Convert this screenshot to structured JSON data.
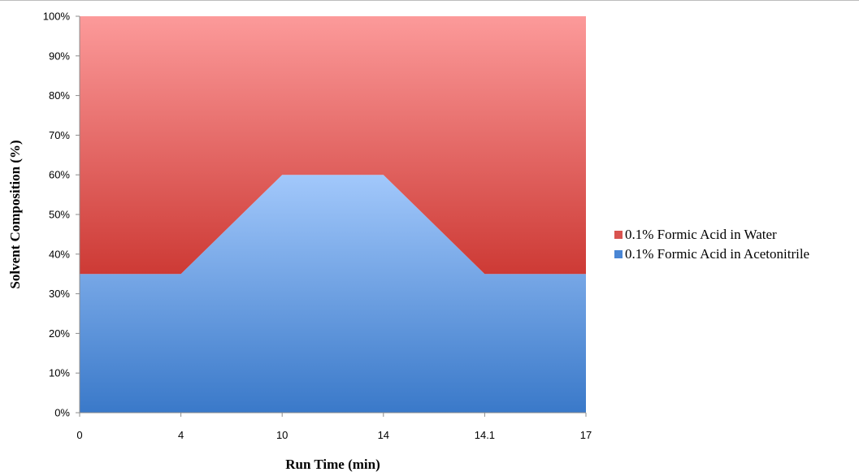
{
  "chart_data": {
    "type": "area",
    "stacked": true,
    "categories": [
      "0",
      "4",
      "10",
      "14",
      "14.1",
      "17"
    ],
    "series": [
      {
        "name": "0.1% Formic Acid in Acetonitrile",
        "values": [
          35,
          35,
          60,
          60,
          35,
          35
        ],
        "color": "#5a96e0"
      },
      {
        "name": "0.1% Formic Acid in Water",
        "values": [
          65,
          65,
          40,
          40,
          65,
          65
        ],
        "color": "#e06060"
      }
    ],
    "xlabel": "Run Time (min)",
    "ylabel": "Solvent Composition (%)",
    "ylim": [
      0,
      100
    ],
    "y_ticks": [
      "0%",
      "10%",
      "20%",
      "30%",
      "40%",
      "50%",
      "60%",
      "70%",
      "80%",
      "90%",
      "100%"
    ],
    "grid": false,
    "legend_position": "right"
  },
  "legend": {
    "items": [
      {
        "label": "0.1% Formic Acid in Water",
        "color": "#d9534f"
      },
      {
        "label": "0.1% Formic Acid in Acetonitrile",
        "color": "#4a86d4"
      }
    ]
  }
}
